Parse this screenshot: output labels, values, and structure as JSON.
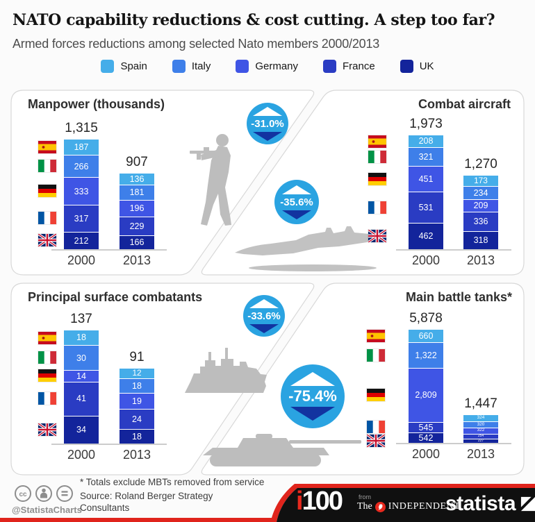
{
  "header": {
    "title": "NATO capability reductions & cost cutting. A step too far?",
    "subtitle": "Armed forces reductions among selected Nato members 2000/2013"
  },
  "legend": {
    "items": [
      {
        "label": "Spain",
        "color": "#45ade9"
      },
      {
        "label": "Italy",
        "color": "#3e7fe9"
      },
      {
        "label": "Germany",
        "color": "#3f55e5"
      },
      {
        "label": "France",
        "color": "#2a3cc3"
      },
      {
        "label": "UK",
        "color": "#13249b"
      }
    ]
  },
  "chart_data": [
    {
      "type": "bar",
      "stacked": true,
      "title": "Manpower (thousands)",
      "title_align": "left",
      "categories": [
        "2000",
        "2013"
      ],
      "series": [
        {
          "name": "Spain",
          "values": [
            187,
            136
          ]
        },
        {
          "name": "Italy",
          "values": [
            266,
            181
          ]
        },
        {
          "name": "Germany",
          "values": [
            333,
            196
          ]
        },
        {
          "name": "France",
          "values": [
            317,
            229
          ]
        },
        {
          "name": "UK",
          "values": [
            212,
            166
          ]
        }
      ],
      "totals": [
        1315,
        907
      ],
      "change_badge": "-31.0%"
    },
    {
      "type": "bar",
      "stacked": true,
      "title": "Combat aircraft",
      "title_align": "right",
      "categories": [
        "2000",
        "2013"
      ],
      "series": [
        {
          "name": "Spain",
          "values": [
            208,
            173
          ]
        },
        {
          "name": "Italy",
          "values": [
            321,
            234
          ]
        },
        {
          "name": "Germany",
          "values": [
            451,
            209
          ]
        },
        {
          "name": "France",
          "values": [
            531,
            336
          ]
        },
        {
          "name": "UK",
          "values": [
            462,
            318
          ]
        }
      ],
      "totals": [
        1973,
        1270
      ],
      "change_badge": "-35.6%"
    },
    {
      "type": "bar",
      "stacked": true,
      "title": "Principal surface combatants",
      "title_align": "left",
      "categories": [
        "2000",
        "2013"
      ],
      "series": [
        {
          "name": "Spain",
          "values": [
            18,
            12
          ]
        },
        {
          "name": "Italy",
          "values": [
            30,
            18
          ]
        },
        {
          "name": "Germany",
          "values": [
            14,
            19
          ]
        },
        {
          "name": "France",
          "values": [
            41,
            24
          ]
        },
        {
          "name": "UK",
          "values": [
            34,
            18
          ]
        }
      ],
      "totals": [
        137,
        91
      ],
      "change_badge": "-33.6%"
    },
    {
      "type": "bar",
      "stacked": true,
      "title": "Main battle tanks*",
      "title_align": "right",
      "categories": [
        "2000",
        "2013"
      ],
      "series": [
        {
          "name": "Spain",
          "values": [
            660,
            324
          ]
        },
        {
          "name": "Italy",
          "values": [
            1322,
            320
          ]
        },
        {
          "name": "Germany",
          "values": [
            2809,
            322
          ]
        },
        {
          "name": "France",
          "values": [
            545,
            254
          ]
        },
        {
          "name": "UK",
          "values": [
            542,
            227
          ]
        }
      ],
      "totals": [
        5878,
        1447
      ],
      "change_badge": "-75.4%"
    }
  ],
  "footer": {
    "footnote": "* Totals exclude MBTs removed from service",
    "source": "Source: Roland Berger Strategy Consultants",
    "attribution": "@StatistaCharts",
    "cc_icons": [
      "cc-icon",
      "attribution-person-icon",
      "no-derivatives-icon"
    ],
    "logos": {
      "i100_i": "i",
      "i100_100": "100",
      "from": "from",
      "the": "The",
      "independent": "INDEPENDENT",
      "statista": "statista"
    }
  },
  "colors": {
    "badge_blue": "#2aa3e1",
    "badge_navy": "#1233a0",
    "footer_red": "#e0241c",
    "footer_black": "#101010",
    "silhouette": "#bdbdbd",
    "card_border": "#d8d8d8"
  }
}
